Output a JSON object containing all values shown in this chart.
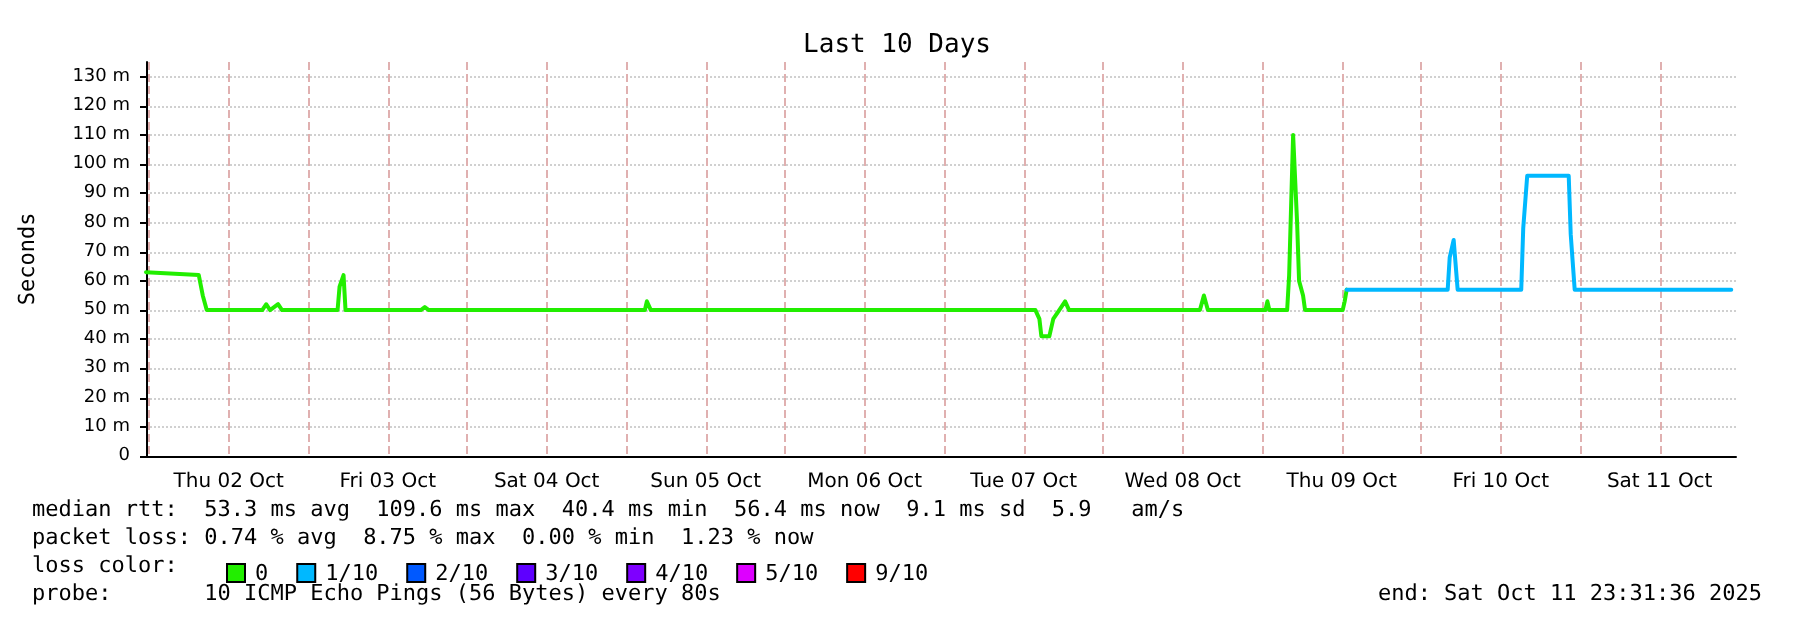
{
  "chart_data": {
    "type": "line",
    "title": "Last 10 Days",
    "ylabel": "Seconds",
    "legend_title": "loss color:",
    "xlim": [
      "2025-10-01T23:31",
      "2025-10-11T23:31"
    ],
    "xticks": [
      {
        "value": "2025-10-02T00:00",
        "label": null
      },
      {
        "value": "2025-10-02T12:00",
        "label": "Thu 02 Oct"
      },
      {
        "value": "2025-10-03T00:00",
        "label": null
      },
      {
        "value": "2025-10-03T12:00",
        "label": "Fri 03 Oct"
      },
      {
        "value": "2025-10-04T00:00",
        "label": null
      },
      {
        "value": "2025-10-04T12:00",
        "label": "Sat 04 Oct"
      },
      {
        "value": "2025-10-05T00:00",
        "label": null
      },
      {
        "value": "2025-10-05T12:00",
        "label": "Sun 05 Oct"
      },
      {
        "value": "2025-10-06T00:00",
        "label": null
      },
      {
        "value": "2025-10-06T12:00",
        "label": "Mon 06 Oct"
      },
      {
        "value": "2025-10-07T00:00",
        "label": null
      },
      {
        "value": "2025-10-07T12:00",
        "label": "Tue 07 Oct"
      },
      {
        "value": "2025-10-08T00:00",
        "label": null
      },
      {
        "value": "2025-10-08T12:00",
        "label": "Wed 08 Oct"
      },
      {
        "value": "2025-10-09T00:00",
        "label": null
      },
      {
        "value": "2025-10-09T12:00",
        "label": "Thu 09 Oct"
      },
      {
        "value": "2025-10-10T00:00",
        "label": null
      },
      {
        "value": "2025-10-10T12:00",
        "label": "Fri 10 Oct"
      },
      {
        "value": "2025-10-11T00:00",
        "label": null
      },
      {
        "value": "2025-10-11T12:00",
        "label": "Sat 11 Oct"
      }
    ],
    "ylim": [
      0,
      135
    ],
    "yticks": [
      0,
      {
        "value": 10,
        "label": "10 m"
      },
      {
        "value": 20,
        "label": "20 m"
      },
      {
        "value": 30,
        "label": "30 m"
      },
      {
        "value": 40,
        "label": "40 m"
      },
      {
        "value": 50,
        "label": "50 m"
      },
      {
        "value": 60,
        "label": "60 m"
      },
      {
        "value": 70,
        "label": "70 m"
      },
      {
        "value": 80,
        "label": "80 m"
      },
      {
        "value": 90,
        "label": "90 m"
      },
      {
        "value": 100,
        "label": "100 m"
      },
      {
        "value": 110,
        "label": "110 m"
      },
      {
        "value": 120,
        "label": "120 m"
      },
      {
        "value": 130,
        "label": "130 m"
      }
    ],
    "grid": true,
    "legend": "bottom",
    "marker": "none",
    "line_style": "solid",
    "series": [
      {
        "name": "0",
        "color": "#22ee00",
        "x": [
          "2025-10-01T23:31",
          "2025-10-02T07:29",
          "2025-10-02T08:05",
          "2025-10-02T08:41",
          "2025-10-02T17:04",
          "2025-10-02T17:39",
          "2025-10-02T18:15",
          "2025-10-02T19:27",
          "2025-10-02T20:03",
          "2025-10-03T04:26",
          "2025-10-03T04:44",
          "2025-10-03T05:20",
          "2025-10-03T05:38",
          "2025-10-03T17:00",
          "2025-10-03T17:36",
          "2025-10-03T18:12",
          "2025-10-05T02:49",
          "2025-10-05T03:07",
          "2025-10-05T03:43",
          "2025-10-07T13:46",
          "2025-10-07T14:22",
          "2025-10-07T14:40",
          "2025-10-07T15:52",
          "2025-10-07T16:28",
          "2025-10-07T17:22",
          "2025-10-07T18:15",
          "2025-10-07T18:51",
          "2025-10-08T14:36",
          "2025-10-08T15:12",
          "2025-10-08T15:48",
          "2025-10-09T00:29",
          "2025-10-09T00:47",
          "2025-10-09T01:05",
          "2025-10-09T03:46",
          "2025-10-09T04:04",
          "2025-10-09T04:40",
          "2025-10-09T05:16",
          "2025-10-09T05:34",
          "2025-10-09T06:10",
          "2025-10-09T06:28",
          "2025-10-09T12:09",
          "2025-10-09T12:27",
          "2025-10-09T12:45"
        ],
        "values": [
          63,
          62,
          55,
          50,
          50,
          52,
          50,
          52,
          50,
          50,
          58,
          62,
          50,
          50,
          51,
          50,
          50,
          53,
          50,
          50,
          47,
          41,
          41,
          47,
          50,
          53,
          50,
          50,
          55,
          50,
          50,
          53,
          50,
          50,
          62,
          110,
          80,
          60,
          55,
          50,
          50,
          53,
          57
        ]
      },
      {
        "name": "1/10",
        "color": "#00b8ff",
        "x": [
          "2025-10-09T12:45",
          "2025-10-10T04:00",
          "2025-10-10T04:18",
          "2025-10-10T04:54",
          "2025-10-10T05:30",
          "2025-10-10T15:06",
          "2025-10-10T15:24",
          "2025-10-10T16:00",
          "2025-10-10T22:16",
          "2025-10-10T22:34",
          "2025-10-10T23:10",
          "2025-10-11T22:48"
        ],
        "values": [
          57,
          57,
          68,
          74,
          57,
          57,
          78,
          96,
          96,
          76,
          57,
          57
        ]
      },
      {
        "name": "2/10",
        "color": "#0059ff"
      },
      {
        "name": "3/10",
        "color": "#5e00ff"
      },
      {
        "name": "4/10",
        "color": "#7e00ff"
      },
      {
        "name": "5/10",
        "color": "#dd00ff"
      },
      {
        "name": "9/10",
        "color": "#ff0000"
      }
    ],
    "annotations": [
      "median rtt:  53.3 ms avg  109.6 ms max  40.4 ms min  56.4 ms now  9.1 ms sd  5.9   am/s",
      "packet loss: 0.74 % avg  8.75 % max  0.00 % min  1.23 % now",
      "probe:       10 ICMP Echo Pings (56 Bytes) every 80s",
      "end: Sat Oct 11 23:31:36 2025"
    ]
  }
}
